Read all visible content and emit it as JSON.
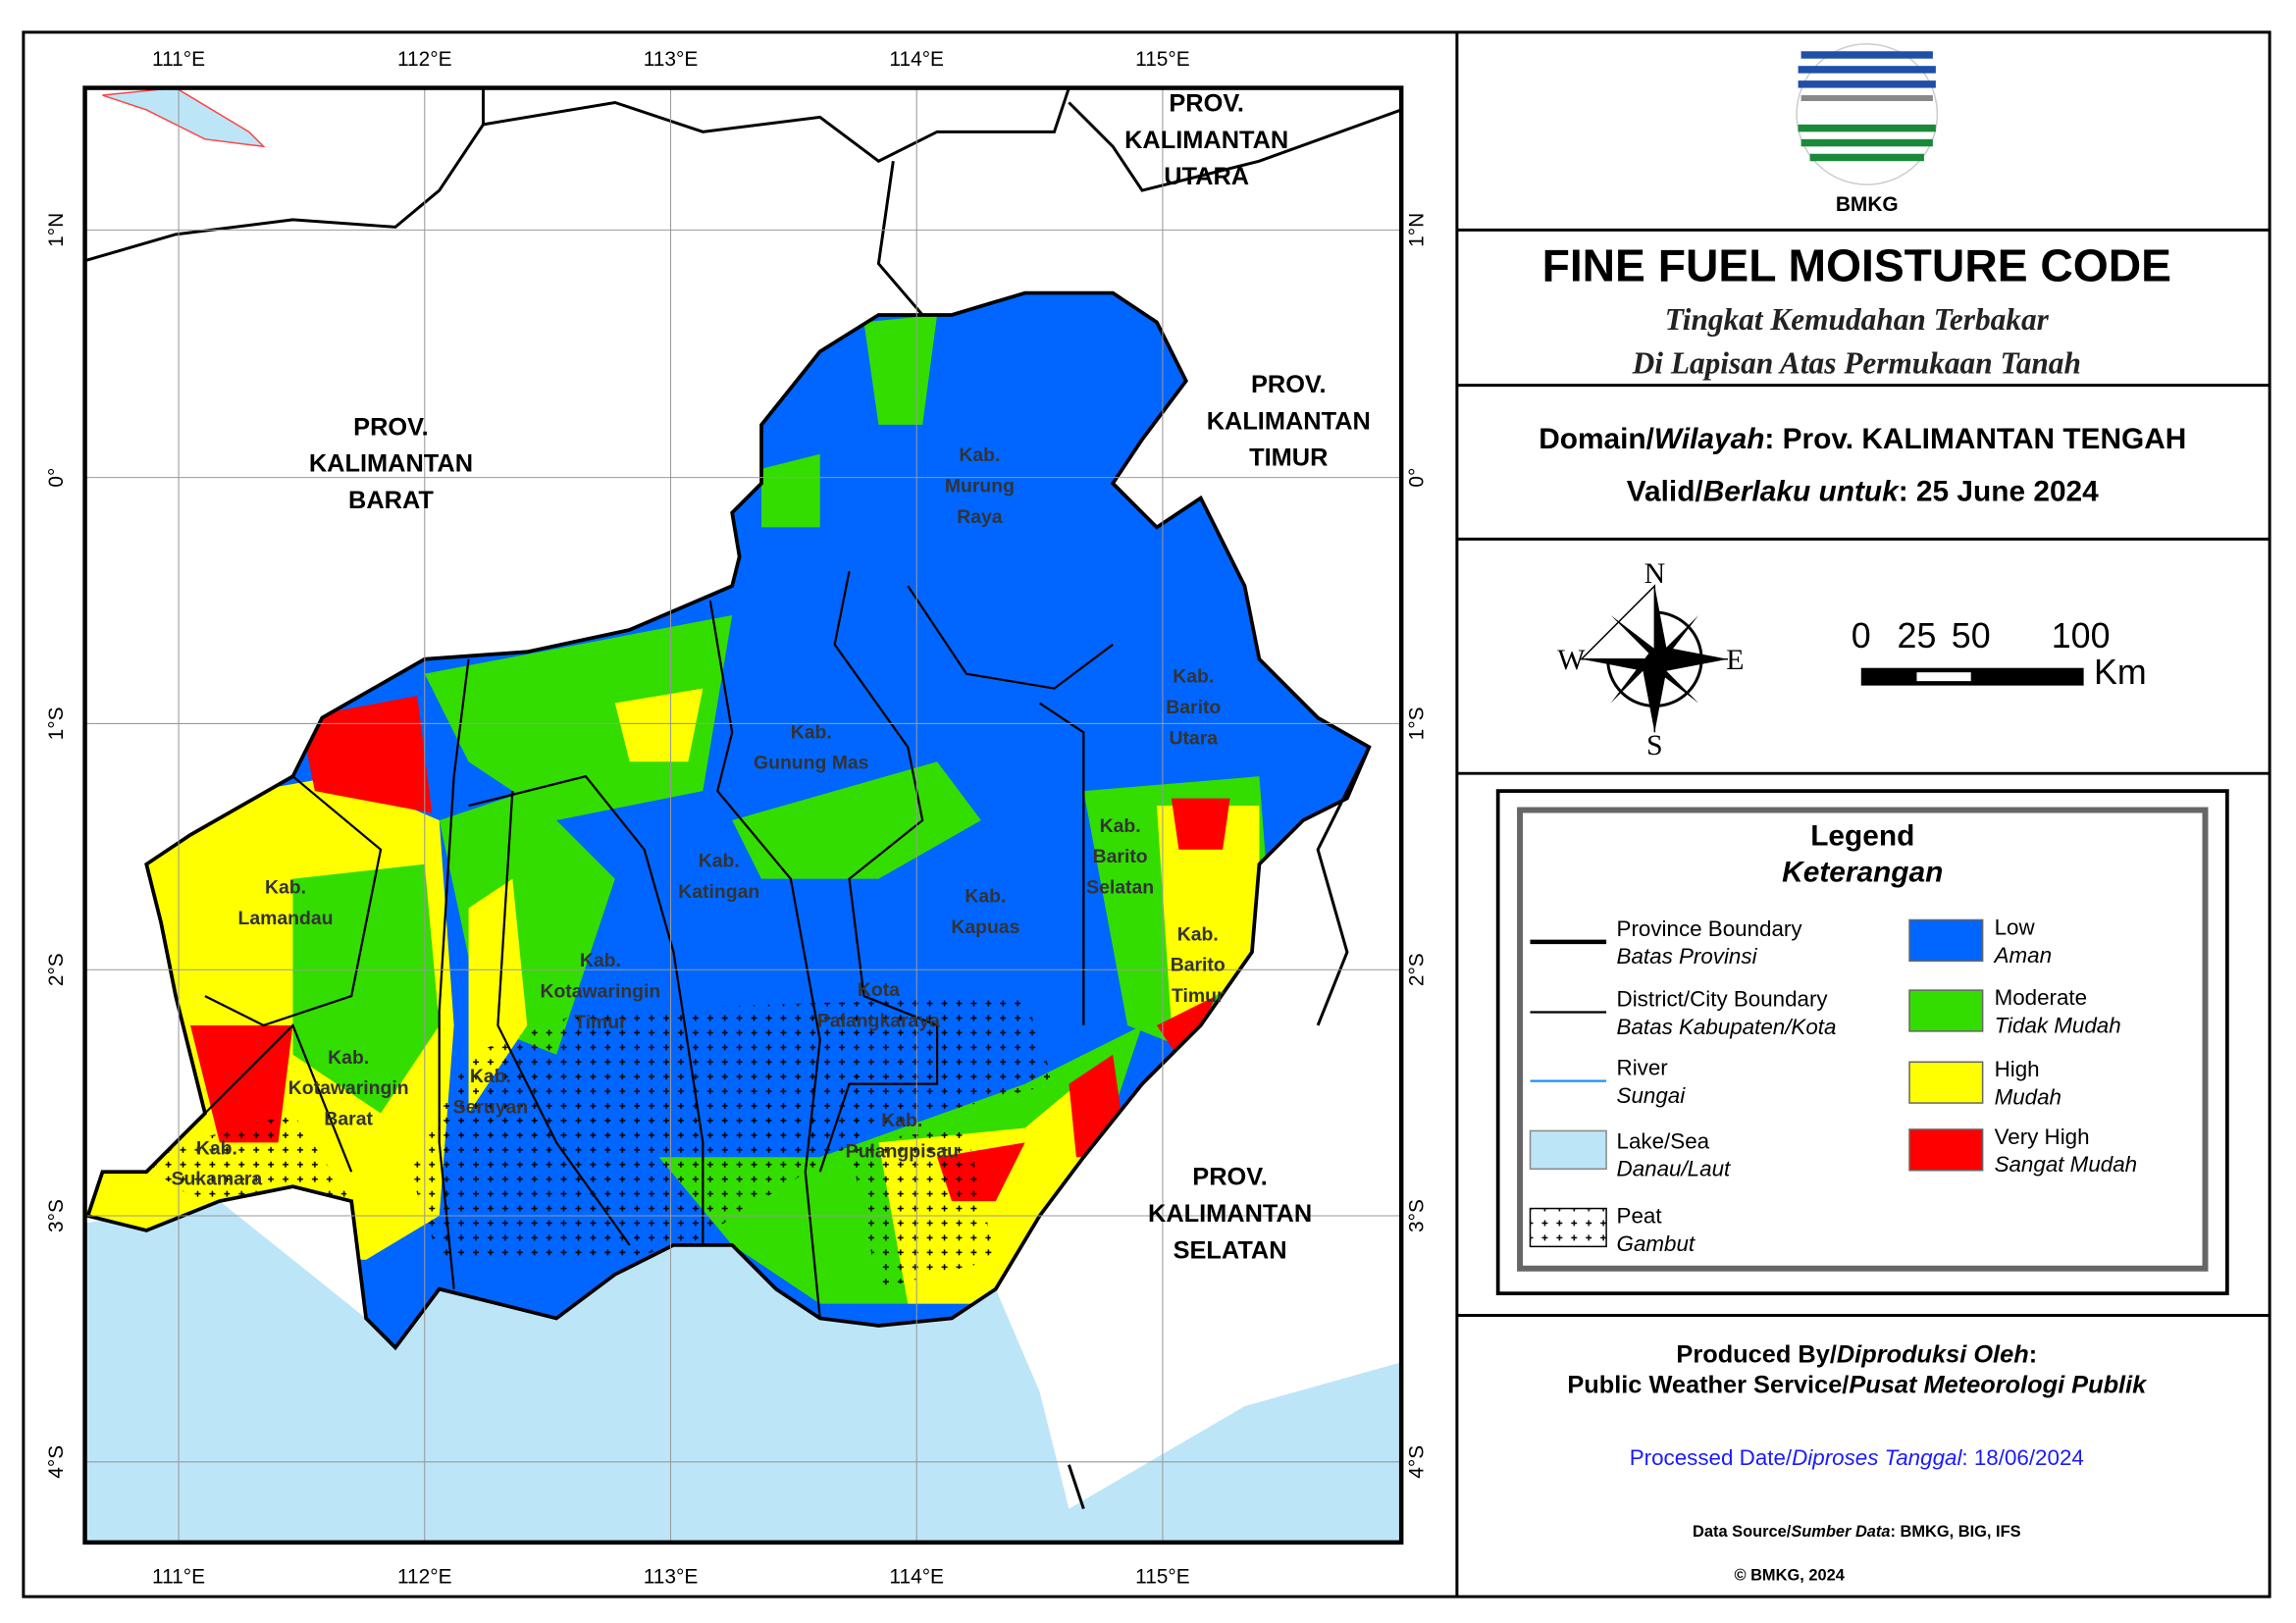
{
  "map": {
    "lon_labels": [
      "111°E",
      "112°E",
      "113°E",
      "114°E",
      "115°E"
    ],
    "lat_labels": [
      "1°N",
      "0°",
      "1°S",
      "2°S",
      "3°S",
      "4°S"
    ],
    "province_labels": [
      {
        "lines": [
          "PROV.",
          "KALIMANTAN",
          "BARAT"
        ]
      },
      {
        "lines": [
          "PROV.",
          "KALIMANTAN",
          "UTARA"
        ]
      },
      {
        "lines": [
          "PROV.",
          "KALIMANTAN",
          "TIMUR"
        ]
      },
      {
        "lines": [
          "PROV.",
          "KALIMANTAN",
          "SELATAN"
        ]
      }
    ],
    "district_labels": [
      {
        "lines": [
          "Kab.",
          "Murung",
          "Raya"
        ]
      },
      {
        "lines": [
          "Kab.",
          "Barito",
          "Utara"
        ]
      },
      {
        "lines": [
          "Kab.",
          "Gunung Mas"
        ]
      },
      {
        "lines": [
          "Kab.",
          "Katingan"
        ]
      },
      {
        "lines": [
          "Kab.",
          "Kapuas"
        ]
      },
      {
        "lines": [
          "Kab.",
          "Barito",
          "Selatan"
        ]
      },
      {
        "lines": [
          "Kab.",
          "Barito",
          "Timur"
        ]
      },
      {
        "lines": [
          "Kab.",
          "Lamandau"
        ]
      },
      {
        "lines": [
          "Kab.",
          "Kotawaringin",
          "Timur"
        ]
      },
      {
        "lines": [
          "Kota",
          "Palangkaraya"
        ]
      },
      {
        "lines": [
          "Kab.",
          "Kotawaringin",
          "Barat"
        ]
      },
      {
        "lines": [
          "Kab.",
          "Seruyan"
        ]
      },
      {
        "lines": [
          "Kab.",
          "Pulangpisau"
        ]
      },
      {
        "lines": [
          "Kab.",
          "Sukamara"
        ]
      }
    ]
  },
  "panel": {
    "logo_text": "BMKG",
    "title": "FINE FUEL MOISTURE CODE",
    "subtitle_lines": [
      "Tingkat Kemudahan Terbakar",
      "Di Lapisan Atas Permukaan Tanah"
    ],
    "domain": {
      "label": "Domain/",
      "label_id": "Wilayah",
      "value": ": Prov. KALIMANTAN TENGAH"
    },
    "valid": {
      "label": "Valid/",
      "label_id": "Berlaku untuk",
      "value": ": 25 June 2024"
    },
    "compass": {
      "n": "N",
      "s": "S",
      "e": "E",
      "w": "W"
    },
    "scale": {
      "labels": [
        "0",
        "25",
        "50",
        "100"
      ],
      "unit": "Km"
    },
    "legend": {
      "title": "Legend",
      "subtitle": "Keterangan",
      "items": [
        {
          "name": "Province Boundary",
          "sub": "Batas Provinsi"
        },
        {
          "name": "District/City Boundary",
          "sub": "Batas Kabupaten/Kota"
        },
        {
          "name": "River",
          "sub": "Sungai"
        },
        {
          "name": "Lake/Sea",
          "sub": "Danau/Laut"
        },
        {
          "name": "Peat",
          "sub": "Gambut"
        },
        {
          "name": "Low",
          "sub": "Aman",
          "color": "#0066ff"
        },
        {
          "name": "Moderate",
          "sub": "Tidak Mudah",
          "color": "#33dd00"
        },
        {
          "name": "High",
          "sub": "Mudah",
          "color": "#ffff00"
        },
        {
          "name": "Very High",
          "sub": "Sangat Mudah",
          "color": "#ff0000"
        }
      ]
    },
    "produced": {
      "label": "Produced By/",
      "label_id": "Diproduksi Oleh",
      "colon": ":"
    },
    "producer": {
      "name": "Public Weather Service/",
      "name_id": "Pusat Meteorologi Publik"
    },
    "processed": {
      "label": "Processed Date/",
      "label_id": "Diproses Tanggal",
      "value": ": 18/06/2024"
    },
    "source": {
      "label": "Data Source/",
      "label_id": "Sumber Data",
      "value": ": BMKG, BIG, IFS"
    },
    "copyright": "© BMKG, 2024"
  }
}
